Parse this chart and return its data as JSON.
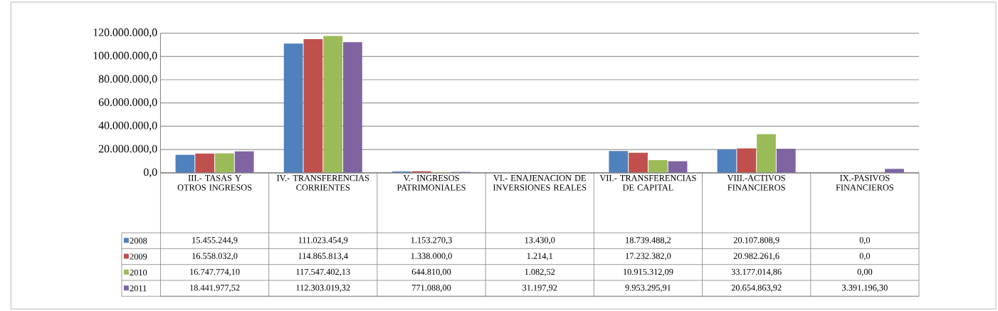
{
  "chart_data": {
    "type": "bar",
    "categories": [
      "III.- TASAS Y OTROS INGRESOS",
      "IV.- TRANSFERENCIAS CORRIENTES",
      "V.- INGRESOS PATRIMONIALES",
      "VI.- ENAJENACION DE INVERSIONES REALES",
      "VII.- TRANSFERENCIAS DE CAPITAL",
      "VIII.-ACTIVOS FINANCIEROS",
      "IX.-PASIVOS FINANCIEROS"
    ],
    "series": [
      {
        "name": "2008",
        "color": "#4f81bd",
        "values": [
          15455244.9,
          111023454.9,
          1153270.3,
          13430.0,
          18739488.2,
          20107808.9,
          0.0
        ],
        "value_labels": [
          "15.455.244,9",
          "111.023.454,9",
          "1.153.270,3",
          "13.430,0",
          "18.739.488,2",
          "20.107.808,9",
          "0,0"
        ]
      },
      {
        "name": "2009",
        "color": "#c0504d",
        "values": [
          16558032.0,
          114865813.4,
          1338000.0,
          1214.1,
          17232382.0,
          20982261.6,
          0.0
        ],
        "value_labels": [
          "16.558.032,0",
          "114.865.813,4",
          "1.338.000,0",
          "1.214,1",
          "17.232.382,0",
          "20.982.261,6",
          "0,0"
        ]
      },
      {
        "name": "2010",
        "color": "#9bbb59",
        "values": [
          16747774.1,
          117547402.13,
          644810.0,
          1082.52,
          10915312.09,
          33177014.86,
          0.0
        ],
        "value_labels": [
          "16.747.774,10",
          "117.547.402,13",
          "644.810,00",
          "1.082,52",
          "10.915.312,09",
          "33.177.014,86",
          "0,00"
        ]
      },
      {
        "name": "2011",
        "color": "#8064a2",
        "values": [
          18441977.52,
          112303019.32,
          771088.0,
          31197.92,
          9953295.91,
          20654863.92,
          3391196.3
        ],
        "value_labels": [
          "18.441.977,52",
          "112.303.019,32",
          "771.088,00",
          "31.197,92",
          "9.953.295,91",
          "20.654.863,92",
          "3.391.196,30"
        ]
      }
    ],
    "ylim": [
      0,
      120000000
    ],
    "yticks": [
      {
        "value": 0,
        "label": "0,0"
      },
      {
        "value": 20000000,
        "label": "20.000.000,0"
      },
      {
        "value": 40000000,
        "label": "40.000.000,0"
      },
      {
        "value": 60000000,
        "label": "60.000.000,0"
      },
      {
        "value": 80000000,
        "label": "80.000.000,0"
      },
      {
        "value": 100000000,
        "label": "100.000.000,0"
      },
      {
        "value": 120000000,
        "label": "120.000.000,0"
      }
    ],
    "grid": "y",
    "legend": "bottom"
  }
}
